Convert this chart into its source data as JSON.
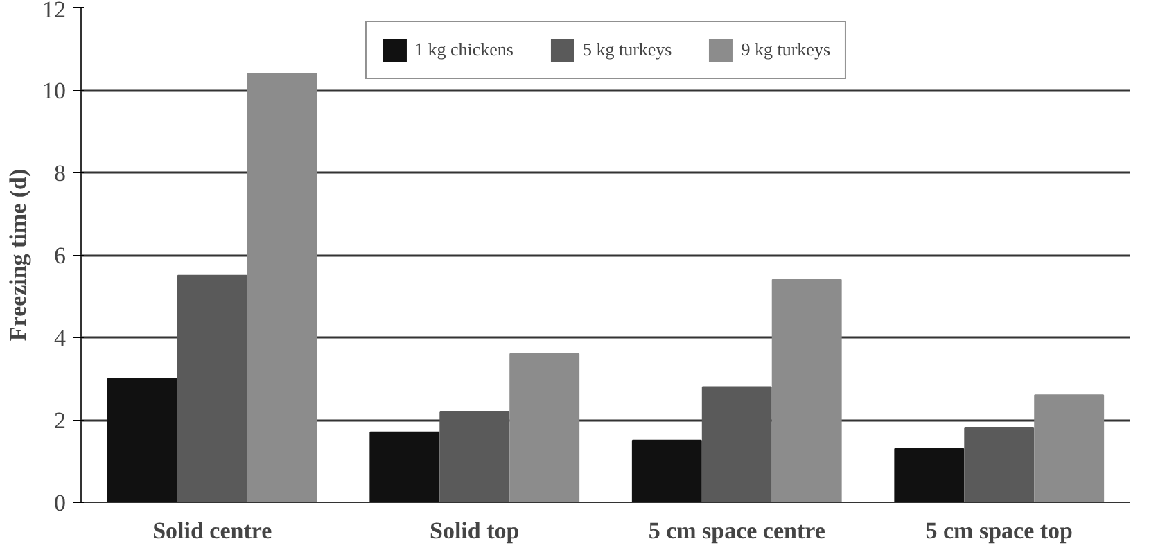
{
  "chart_data": {
    "type": "bar",
    "ylabel": "Freezing time (d)",
    "categories": [
      "Solid centre",
      "Solid top",
      "5 cm space centre",
      "5 cm space top"
    ],
    "series": [
      {
        "name": "1 kg chickens",
        "color": "#111111",
        "values": [
          3.0,
          1.7,
          1.5,
          1.3
        ]
      },
      {
        "name": "5 kg turkeys",
        "color": "#5a5a5a",
        "values": [
          5.5,
          2.2,
          2.8,
          1.8
        ]
      },
      {
        "name": "9 kg turkeys",
        "color": "#8c8c8c",
        "values": [
          10.4,
          3.6,
          5.4,
          2.6
        ]
      }
    ],
    "ylim": [
      0,
      12
    ],
    "yticks": [
      0,
      2,
      4,
      6,
      8,
      10,
      12
    ],
    "grid": "y",
    "legend": "top"
  }
}
